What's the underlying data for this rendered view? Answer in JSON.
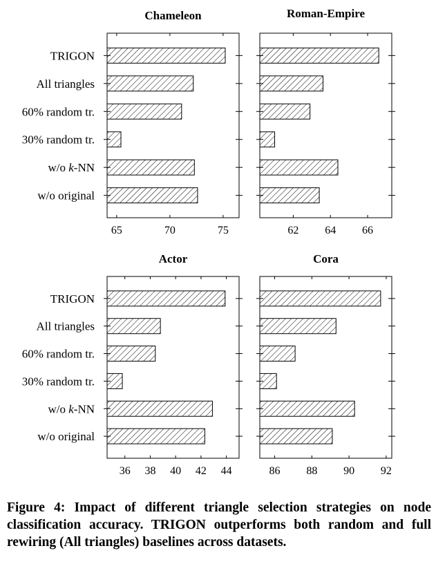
{
  "chart_data": [
    {
      "type": "bar",
      "orientation": "horizontal",
      "title": "Chameleon",
      "categories": [
        "TRIGON",
        "All triangles",
        "60% random tr.",
        "30% random tr.",
        "w/o k-NN",
        "w/o original"
      ],
      "values": [
        75.2,
        72.2,
        71.1,
        65.4,
        72.3,
        72.6
      ],
      "xlim": [
        64.1,
        76.5
      ],
      "xticks": [
        65,
        70,
        75
      ],
      "xlabel": "",
      "ylabel": ""
    },
    {
      "type": "bar",
      "orientation": "horizontal",
      "title": "Roman-Empire",
      "categories": [
        "TRIGON",
        "All triangles",
        "60% random tr.",
        "30% random tr.",
        "w/o k-NN",
        "w/o original"
      ],
      "values": [
        66.6,
        63.6,
        62.9,
        61.0,
        64.4,
        63.4
      ],
      "xlim": [
        60.2,
        67.3
      ],
      "xticks": [
        62,
        64,
        66
      ],
      "xlabel": "",
      "ylabel": ""
    },
    {
      "type": "bar",
      "orientation": "horizontal",
      "title": "Actor",
      "categories": [
        "TRIGON",
        "All triangles",
        "60% random tr.",
        "30% random tr.",
        "w/o k-NN",
        "w/o original"
      ],
      "values": [
        43.9,
        38.8,
        38.4,
        35.8,
        42.9,
        42.3
      ],
      "xlim": [
        34.6,
        45.0
      ],
      "xticks": [
        36,
        38,
        40,
        42,
        44
      ],
      "xlabel": "",
      "ylabel": ""
    },
    {
      "type": "bar",
      "orientation": "horizontal",
      "title": "Cora",
      "categories": [
        "TRIGON",
        "All triangles",
        "60% random tr.",
        "30% random tr.",
        "w/o k-NN",
        "w/o original"
      ],
      "values": [
        91.7,
        89.3,
        87.1,
        86.1,
        90.3,
        89.1
      ],
      "xlim": [
        85.2,
        92.3
      ],
      "xticks": [
        86,
        88,
        90,
        92
      ],
      "xlabel": "",
      "ylabel": ""
    }
  ],
  "caption": "Figure 4: Impact of different triangle selection strategies on node classification accuracy. TRIGON outperforms both random and full rewiring (All triangles) baselines across datasets."
}
